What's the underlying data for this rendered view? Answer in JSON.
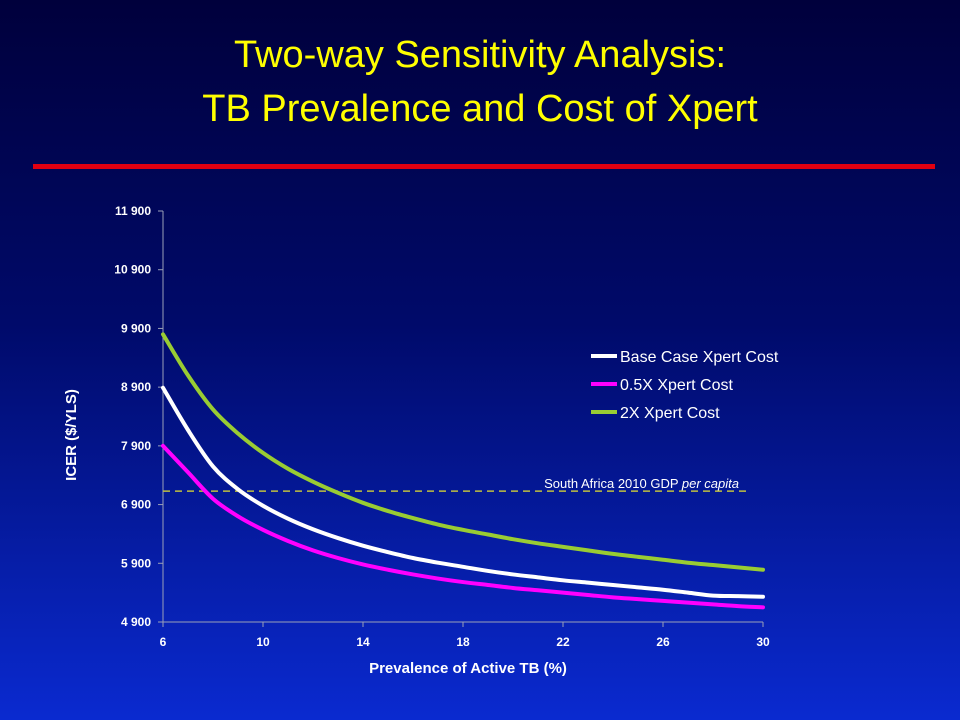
{
  "slide": {
    "title_line1": "Two-way Sensitivity Analysis:",
    "title_line2": "TB Prevalence and Cost of Xpert",
    "title_color": "#ffff00",
    "rule_color": "#e00010"
  },
  "chart_data": {
    "type": "line",
    "xlabel": "Prevalence of Active TB (%)",
    "ylabel": "ICER ($/YLS)",
    "xlim": [
      6,
      30
    ],
    "ylim": [
      4900,
      11900
    ],
    "x_ticks": [
      6,
      10,
      14,
      18,
      22,
      26,
      30
    ],
    "x_tick_labels": [
      "6",
      "10",
      "14",
      "18",
      "22",
      "26",
      "30"
    ],
    "y_ticks": [
      4900,
      5900,
      6900,
      7900,
      8900,
      9900,
      10900,
      11900
    ],
    "y_tick_labels": [
      "4 900",
      "5 900",
      "6 900",
      "7 900",
      "8 900",
      "9 900",
      "10 900",
      "11 900"
    ],
    "grid": false,
    "legend_position": "right",
    "x": [
      6,
      7,
      8,
      9,
      10,
      11,
      12,
      13,
      14,
      15,
      16,
      17,
      18,
      19,
      20,
      21,
      22,
      23,
      24,
      25,
      26,
      27,
      28,
      29,
      30
    ],
    "series": [
      {
        "name": "Base Case Xpert Cost",
        "color": "#ffffff",
        "values": [
          8890,
          8170,
          7550,
          7160,
          6880,
          6660,
          6480,
          6330,
          6200,
          6090,
          5990,
          5910,
          5840,
          5770,
          5710,
          5660,
          5610,
          5570,
          5530,
          5490,
          5450,
          5400,
          5350,
          5340,
          5330
        ]
      },
      {
        "name": "0.5X Xpert Cost",
        "color": "#ff00ff",
        "values": [
          7900,
          7450,
          7000,
          6700,
          6470,
          6280,
          6120,
          5990,
          5880,
          5790,
          5710,
          5640,
          5580,
          5530,
          5480,
          5440,
          5400,
          5360,
          5320,
          5290,
          5260,
          5230,
          5200,
          5170,
          5150
        ]
      },
      {
        "name": "2X Xpert Cost",
        "color": "#99cc33",
        "values": [
          9800,
          9100,
          8520,
          8110,
          7780,
          7510,
          7290,
          7100,
          6930,
          6790,
          6670,
          6560,
          6470,
          6390,
          6310,
          6240,
          6180,
          6120,
          6060,
          6010,
          5960,
          5910,
          5870,
          5830,
          5790
        ]
      }
    ],
    "reference_line": {
      "label": "South Africa 2010 GDP per capita",
      "label_plain": "South Africa 2010 GDP ",
      "label_italic": "per capita",
      "value": 7130,
      "color": "#c0c040"
    }
  }
}
